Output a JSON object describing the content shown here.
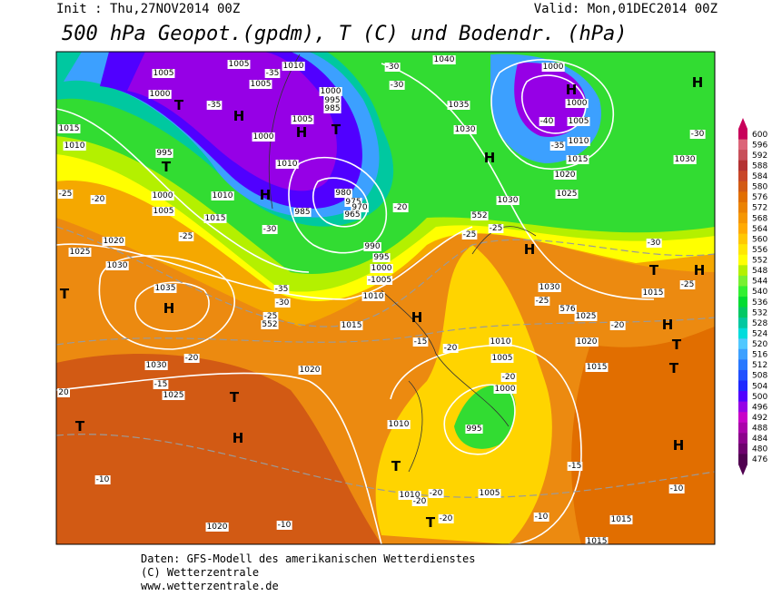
{
  "header": {
    "init": "Init : Thu,27NOV2014 00Z",
    "valid": "Valid: Mon,01DEC2014 00Z",
    "title": "500 hPa Geopot.(gpdm), T (C) und Bodendr. (hPa)"
  },
  "footer": {
    "lines": [
      "Daten: GFS-Modell des amerikanischen Wetterdienstes",
      "(C) Wetterzentrale",
      "www.wetterzentrale.de"
    ]
  },
  "scale": {
    "ticks": [
      600,
      596,
      592,
      588,
      584,
      580,
      576,
      572,
      568,
      564,
      560,
      556,
      552,
      548,
      544,
      540,
      536,
      532,
      528,
      524,
      520,
      516,
      512,
      508,
      504,
      500,
      496,
      492,
      488,
      484,
      480,
      476
    ],
    "colors": [
      "#c8005a",
      "#dc6478",
      "#c8505a",
      "#b43232",
      "#c84628",
      "#d25a14",
      "#e16e00",
      "#eb8200",
      "#f59600",
      "#ffaa00",
      "#ffc800",
      "#ffe600",
      "#ffff00",
      "#b4f000",
      "#78f032",
      "#32f032",
      "#00dc32",
      "#00c864",
      "#00c8a0",
      "#00dcdc",
      "#50c8ff",
      "#3ca0ff",
      "#2878ff",
      "#2050ff",
      "#1e28ff",
      "#5000ff",
      "#9600e6",
      "#c800c8",
      "#aa00aa",
      "#8c008c",
      "#6e006e",
      "#500050"
    ]
  },
  "map": {
    "labels": [
      "1005",
      "1005",
      "1005",
      "-35",
      "1010",
      "1000",
      "T",
      "-35",
      "H",
      "1000",
      "995",
      "985",
      "-30",
      "-30",
      "1040",
      "1000",
      "H",
      "1000",
      "H",
      "1015",
      "1010",
      "995",
      "T",
      "1000",
      "1005",
      "H",
      "T",
      "1035",
      "1030",
      "-40",
      "1005",
      "1010",
      "-30",
      "-35",
      "1015",
      "1020",
      "1030",
      "1010",
      "H",
      "-25",
      "-20",
      "1000",
      "1010",
      "H",
      "980",
      "975",
      "970",
      "965",
      "-20",
      "1030",
      "1025",
      "1005",
      "1015",
      "985",
      "-30",
      "552",
      "-25",
      "-25",
      "-30",
      "1020",
      "-25",
      "990",
      "995",
      "1000",
      "H",
      "1025",
      "1030",
      "-1005",
      "1035",
      "-35",
      "-30",
      "1010",
      "T",
      "H",
      "1030",
      "1015",
      "-25",
      "T",
      "H",
      "-25",
      "576",
      "1025",
      "-25",
      "552",
      "H",
      "-20",
      "1015",
      "H",
      "-15",
      "-20",
      "1010",
      "1020",
      "-20",
      "1005",
      "T",
      "1030",
      "1020",
      "-15",
      "-20",
      "1015",
      "1000",
      "T",
      "1025",
      "T",
      "20",
      "1010",
      "995",
      "T",
      "H",
      "H",
      "-15",
      "-10",
      "T",
      "1010",
      "-20",
      "-20",
      "1005",
      "-10",
      "T",
      "-20",
      "-10",
      "1015",
      "1020",
      "-10",
      "1015"
    ]
  }
}
